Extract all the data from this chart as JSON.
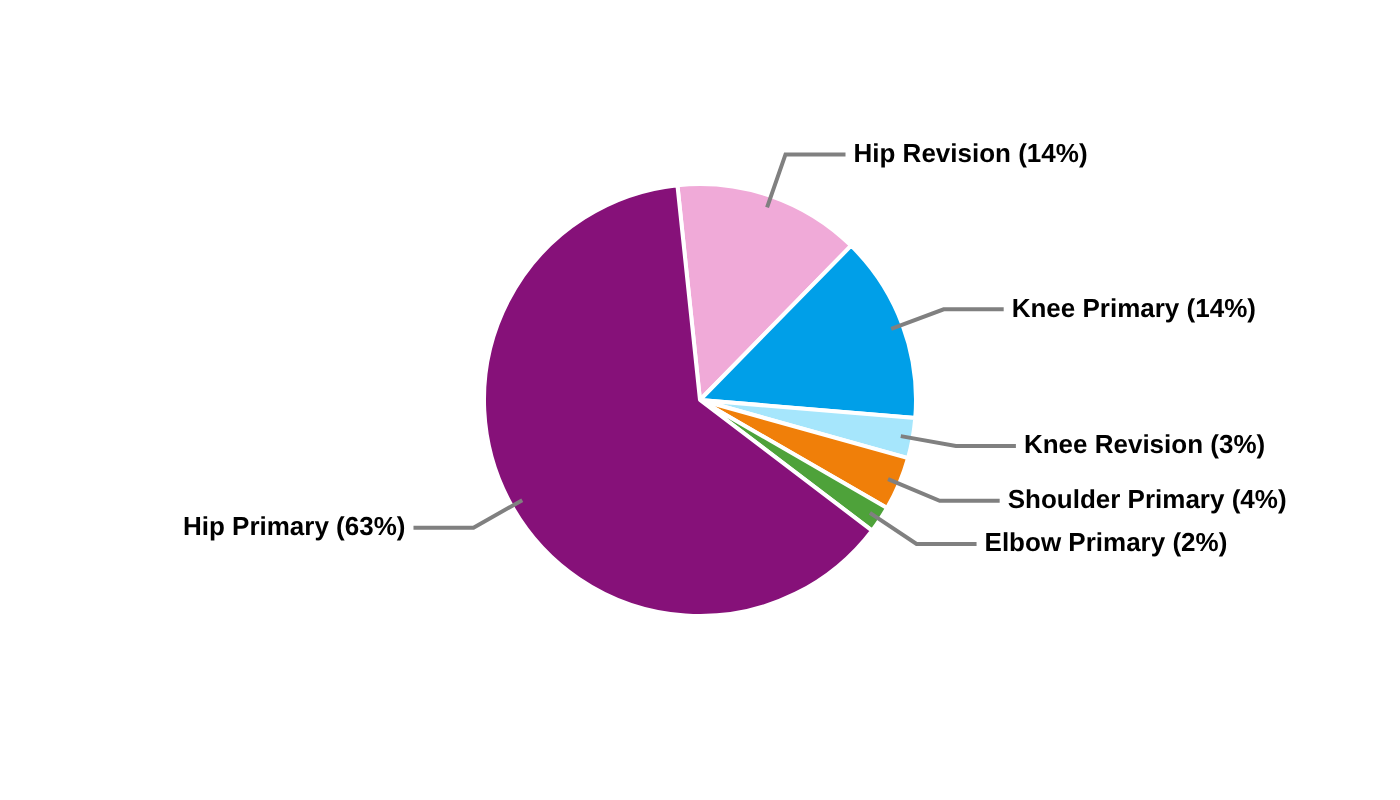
{
  "chart_data": {
    "type": "pie",
    "categories": [
      "Hip Revision (14%)",
      "Knee Primary (14%)",
      "Knee Revision (3%)",
      "Shoulder Primary (4%)",
      "Elbow Primary (2%)",
      "Hip Primary (63%)"
    ],
    "values": [
      14,
      14,
      3,
      4,
      2,
      63
    ],
    "colors": [
      "#f0aad8",
      "#009fe8",
      "#a6e6fc",
      "#f07f09",
      "#4ea23a",
      "#861179"
    ],
    "legend": false
  }
}
